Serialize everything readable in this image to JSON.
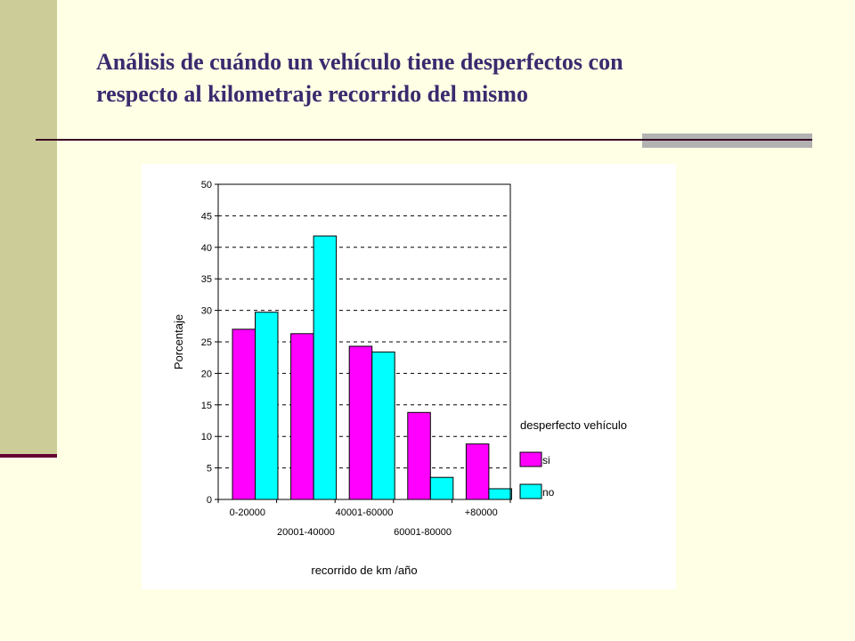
{
  "slide": {
    "title_line1": "Análisis de cuándo un vehículo tiene desperfectos con",
    "title_line2": "respecto al kilometraje recorrido del mismo"
  },
  "colors": {
    "background": "#FFFFE5",
    "sidebar": "#CCCC99",
    "title": "#3A2A6E",
    "series_si": "#FF00FF",
    "series_no": "#00FFFF"
  },
  "chart_data": {
    "type": "bar",
    "title": "",
    "xlabel": "recorrido de km /año",
    "ylabel": "Porcentaje",
    "categories": [
      "0-20000",
      "20001-40000",
      "40001-60000",
      "60001-80000",
      "+80000"
    ],
    "series": [
      {
        "name": "si",
        "color": "#FF00FF",
        "values": [
          27.0,
          26.3,
          24.3,
          13.8,
          8.8
        ]
      },
      {
        "name": "no",
        "color": "#00FFFF",
        "values": [
          29.7,
          41.8,
          23.4,
          3.5,
          1.7
        ]
      }
    ],
    "ylim": [
      0,
      50
    ],
    "yticks": [
      0,
      5,
      10,
      15,
      20,
      25,
      30,
      35,
      40,
      45,
      50
    ],
    "grid": true,
    "legend_title": "desperfecto vehículo",
    "legend_position": "right"
  }
}
